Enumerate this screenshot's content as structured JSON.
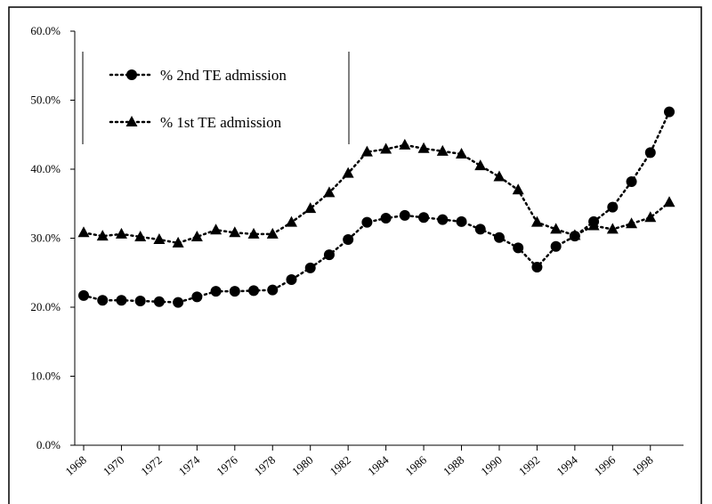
{
  "chart_data": {
    "type": "line",
    "x": [
      1968,
      1969,
      1970,
      1971,
      1972,
      1973,
      1974,
      1975,
      1976,
      1977,
      1978,
      1979,
      1980,
      1981,
      1982,
      1983,
      1984,
      1985,
      1986,
      1987,
      1988,
      1989,
      1990,
      1991,
      1992,
      1993,
      1994,
      1995,
      1996,
      1997,
      1998,
      1999
    ],
    "xlim": [
      1968,
      1999
    ],
    "xticks": [
      1968,
      1970,
      1972,
      1974,
      1976,
      1978,
      1980,
      1982,
      1984,
      1986,
      1988,
      1990,
      1992,
      1994,
      1996,
      1998
    ],
    "ylim": [
      0,
      60
    ],
    "yticks": [
      {
        "value": 0,
        "label": "0.0%"
      },
      {
        "value": 10,
        "label": "10.0%"
      },
      {
        "value": 20,
        "label": "20.0%"
      },
      {
        "value": 30,
        "label": "30.0%"
      },
      {
        "value": 40,
        "label": "40.0%"
      },
      {
        "value": 50,
        "label": "50.0%"
      },
      {
        "value": 60,
        "label": "60.0%"
      }
    ],
    "series": [
      {
        "name": "% 2nd TE admission",
        "color": "#000000",
        "marker": "circle",
        "values": [
          21.7,
          21.0,
          21.0,
          20.9,
          20.8,
          20.7,
          21.5,
          22.3,
          22.3,
          22.4,
          22.5,
          24.0,
          25.7,
          27.6,
          29.8,
          32.3,
          32.9,
          33.3,
          33.0,
          32.7,
          32.4,
          31.3,
          30.1,
          28.6,
          25.8,
          28.8,
          30.3,
          32.4,
          34.5,
          38.2,
          42.4,
          48.3
        ]
      },
      {
        "name": "% 1st TE admission",
        "color": "#000000",
        "marker": "triangle",
        "values": [
          30.8,
          30.3,
          30.6,
          30.2,
          29.8,
          29.3,
          30.2,
          31.2,
          30.8,
          30.6,
          30.6,
          32.3,
          34.3,
          36.6,
          39.4,
          42.5,
          42.9,
          43.5,
          43.0,
          42.6,
          42.2,
          40.5,
          38.9,
          37.0,
          32.3,
          31.3,
          30.4,
          31.8,
          31.3,
          32.1,
          33.0,
          35.2
        ]
      }
    ]
  }
}
